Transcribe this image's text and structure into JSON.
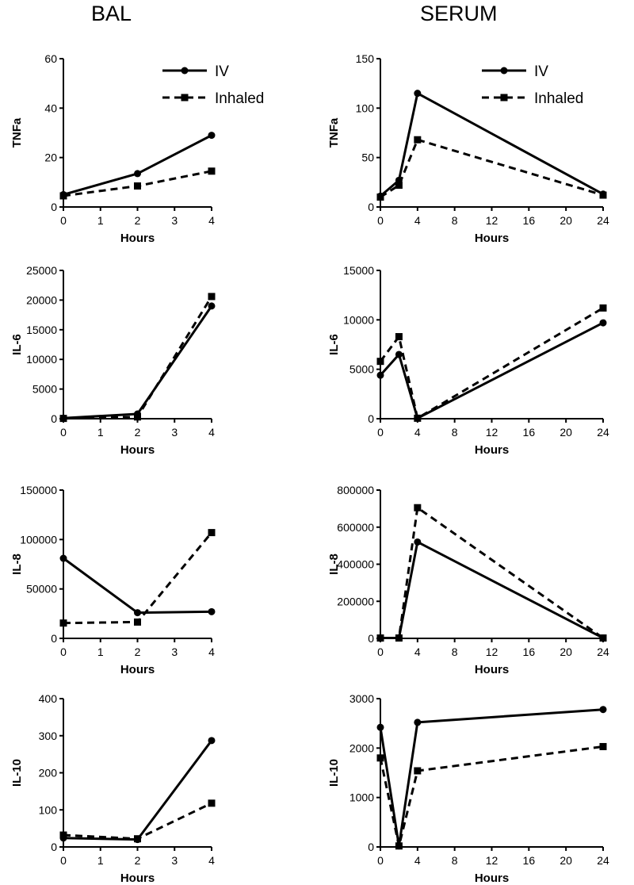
{
  "headers": {
    "bal": "BAL",
    "serum": "SERUM"
  },
  "legend": {
    "iv": "IV",
    "inhaled": "Inhaled"
  },
  "colors": {
    "line": "#000000",
    "background": "#ffffff"
  },
  "chart_data": [
    {
      "id": "bal-tnfa",
      "type": "line",
      "title": "",
      "xlabel": "Hours",
      "ylabel": "TNFa",
      "xlim": [
        0,
        4
      ],
      "xticks": [
        0,
        1,
        2,
        3,
        4
      ],
      "ylim": [
        0,
        60
      ],
      "yticks": [
        0,
        20,
        40,
        60
      ],
      "legend": true,
      "legend_position": "top-right",
      "series": [
        {
          "name": "IV",
          "style": "solid",
          "marker": "circle",
          "x": [
            0,
            2,
            4
          ],
          "y": [
            5,
            13.5,
            29
          ]
        },
        {
          "name": "Inhaled",
          "style": "dashed",
          "marker": "square",
          "x": [
            0,
            2,
            4
          ],
          "y": [
            4.5,
            8.5,
            14.5
          ]
        }
      ]
    },
    {
      "id": "serum-tnfa",
      "type": "line",
      "title": "",
      "xlabel": "Hours",
      "ylabel": "TNFa",
      "xlim": [
        0,
        24
      ],
      "xticks": [
        0,
        4,
        8,
        12,
        16,
        20,
        24
      ],
      "ylim": [
        0,
        150
      ],
      "yticks": [
        0,
        50,
        100,
        150
      ],
      "legend": true,
      "legend_position": "top-right",
      "series": [
        {
          "name": "IV",
          "style": "solid",
          "marker": "circle",
          "x": [
            0,
            2,
            4,
            24
          ],
          "y": [
            11,
            27,
            115,
            13
          ]
        },
        {
          "name": "Inhaled",
          "style": "dashed",
          "marker": "square",
          "x": [
            0,
            2,
            4,
            24
          ],
          "y": [
            10,
            22,
            68,
            12
          ]
        }
      ]
    },
    {
      "id": "bal-il6",
      "type": "line",
      "title": "",
      "xlabel": "Hours",
      "ylabel": "IL-6",
      "xlim": [
        0,
        4
      ],
      "xticks": [
        0,
        1,
        2,
        3,
        4
      ],
      "ylim": [
        0,
        25000
      ],
      "yticks": [
        0,
        5000,
        10000,
        15000,
        20000,
        25000
      ],
      "legend": false,
      "series": [
        {
          "name": "IV",
          "style": "solid",
          "marker": "circle",
          "x": [
            0,
            2,
            4
          ],
          "y": [
            100,
            800,
            19000
          ]
        },
        {
          "name": "Inhaled",
          "style": "dashed",
          "marker": "square",
          "x": [
            0,
            2,
            4
          ],
          "y": [
            50,
            300,
            20600
          ]
        }
      ]
    },
    {
      "id": "serum-il6",
      "type": "line",
      "title": "",
      "xlabel": "Hours",
      "ylabel": "IL-6",
      "xlim": [
        0,
        24
      ],
      "xticks": [
        0,
        4,
        8,
        12,
        16,
        20,
        24
      ],
      "ylim": [
        0,
        15000
      ],
      "yticks": [
        0,
        5000,
        10000,
        15000
      ],
      "legend": false,
      "series": [
        {
          "name": "IV",
          "style": "solid",
          "marker": "circle",
          "x": [
            0,
            2,
            4,
            24
          ],
          "y": [
            4400,
            6500,
            50,
            9700
          ]
        },
        {
          "name": "Inhaled",
          "style": "dashed",
          "marker": "square",
          "x": [
            0,
            2,
            4,
            24
          ],
          "y": [
            5800,
            8300,
            50,
            11200
          ]
        }
      ]
    },
    {
      "id": "bal-il8",
      "type": "line",
      "title": "",
      "xlabel": "Hours",
      "ylabel": "IL-8",
      "xlim": [
        0,
        4
      ],
      "xticks": [
        0,
        1,
        2,
        3,
        4
      ],
      "ylim": [
        0,
        150000
      ],
      "yticks": [
        0,
        50000,
        100000,
        150000
      ],
      "legend": false,
      "series": [
        {
          "name": "IV",
          "style": "solid",
          "marker": "circle",
          "x": [
            0,
            2,
            4
          ],
          "y": [
            81000,
            26000,
            27000
          ]
        },
        {
          "name": "Inhaled",
          "style": "dashed",
          "marker": "square",
          "x": [
            0,
            2,
            4
          ],
          "y": [
            15500,
            16500,
            107000
          ]
        }
      ]
    },
    {
      "id": "serum-il8",
      "type": "line",
      "title": "",
      "xlabel": "Hours",
      "ylabel": "IL-8",
      "xlim": [
        0,
        24
      ],
      "xticks": [
        0,
        4,
        8,
        12,
        16,
        20,
        24
      ],
      "ylim": [
        0,
        800000
      ],
      "yticks": [
        0,
        200000,
        400000,
        600000,
        800000
      ],
      "legend": false,
      "series": [
        {
          "name": "IV",
          "style": "solid",
          "marker": "circle",
          "x": [
            0,
            2,
            4,
            24
          ],
          "y": [
            2000,
            2000,
            520000,
            2000
          ]
        },
        {
          "name": "Inhaled",
          "style": "dashed",
          "marker": "square",
          "x": [
            0,
            2,
            4,
            24
          ],
          "y": [
            2000,
            2000,
            705000,
            2000
          ]
        }
      ]
    },
    {
      "id": "bal-il10",
      "type": "line",
      "title": "",
      "xlabel": "Hours",
      "ylabel": "IL-10",
      "xlim": [
        0,
        4
      ],
      "xticks": [
        0,
        1,
        2,
        3,
        4
      ],
      "ylim": [
        0,
        400
      ],
      "yticks": [
        0,
        100,
        200,
        300,
        400
      ],
      "legend": false,
      "series": [
        {
          "name": "IV",
          "style": "solid",
          "marker": "circle",
          "x": [
            0,
            2,
            4
          ],
          "y": [
            24,
            20,
            287
          ]
        },
        {
          "name": "Inhaled",
          "style": "dashed",
          "marker": "square",
          "x": [
            0,
            2,
            4
          ],
          "y": [
            32,
            22,
            118
          ]
        }
      ]
    },
    {
      "id": "serum-il10",
      "type": "line",
      "title": "",
      "xlabel": "Hours",
      "ylabel": "IL-10",
      "xlim": [
        0,
        24
      ],
      "xticks": [
        0,
        4,
        8,
        12,
        16,
        20,
        24
      ],
      "ylim": [
        0,
        3000
      ],
      "yticks": [
        0,
        1000,
        2000,
        3000
      ],
      "legend": false,
      "series": [
        {
          "name": "IV",
          "style": "solid",
          "marker": "circle",
          "x": [
            0,
            2,
            4,
            24
          ],
          "y": [
            2420,
            20,
            2520,
            2780
          ]
        },
        {
          "name": "Inhaled",
          "style": "dashed",
          "marker": "square",
          "x": [
            0,
            2,
            4,
            24
          ],
          "y": [
            1800,
            20,
            1540,
            2030
          ]
        }
      ]
    }
  ]
}
